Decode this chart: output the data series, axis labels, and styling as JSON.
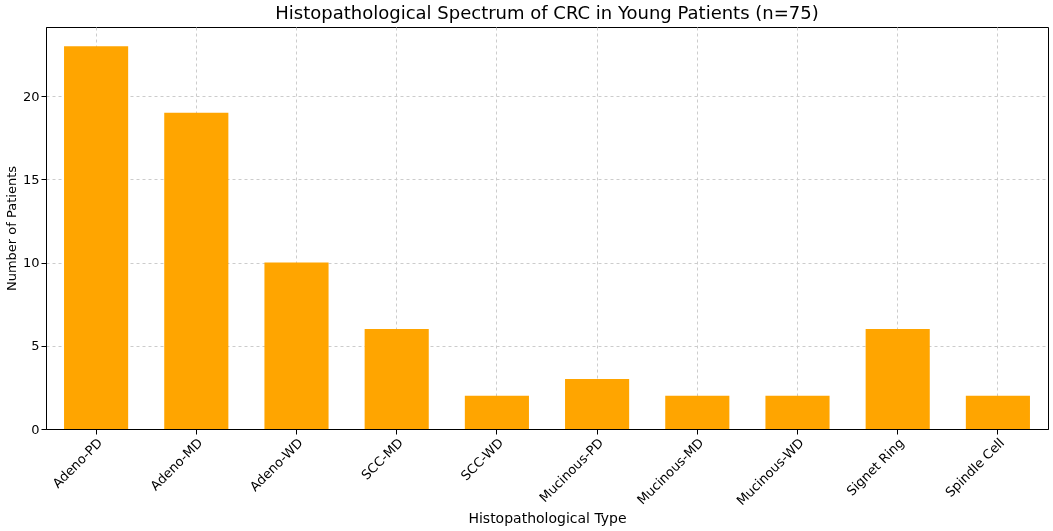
{
  "chart_data": {
    "type": "bar",
    "title": "Histopathological Spectrum of CRC in Young Patients (n=75)",
    "xlabel": "Histopathological Type",
    "ylabel": "Number of Patients",
    "categories": [
      "Adeno-PD",
      "Adeno-MD",
      "Adeno-WD",
      "SCC-MD",
      "SCC-WD",
      "Mucinous-PD",
      "Mucinous-MD",
      "Mucinous-WD",
      "Signet Ring",
      "Spindle Cell"
    ],
    "values": [
      23,
      19,
      10,
      6,
      2,
      3,
      2,
      2,
      6,
      2
    ],
    "color": "#ffa500",
    "ylim": [
      0,
      24.15
    ],
    "yticks": [
      0,
      5,
      10,
      15,
      20
    ],
    "grid": true
  }
}
